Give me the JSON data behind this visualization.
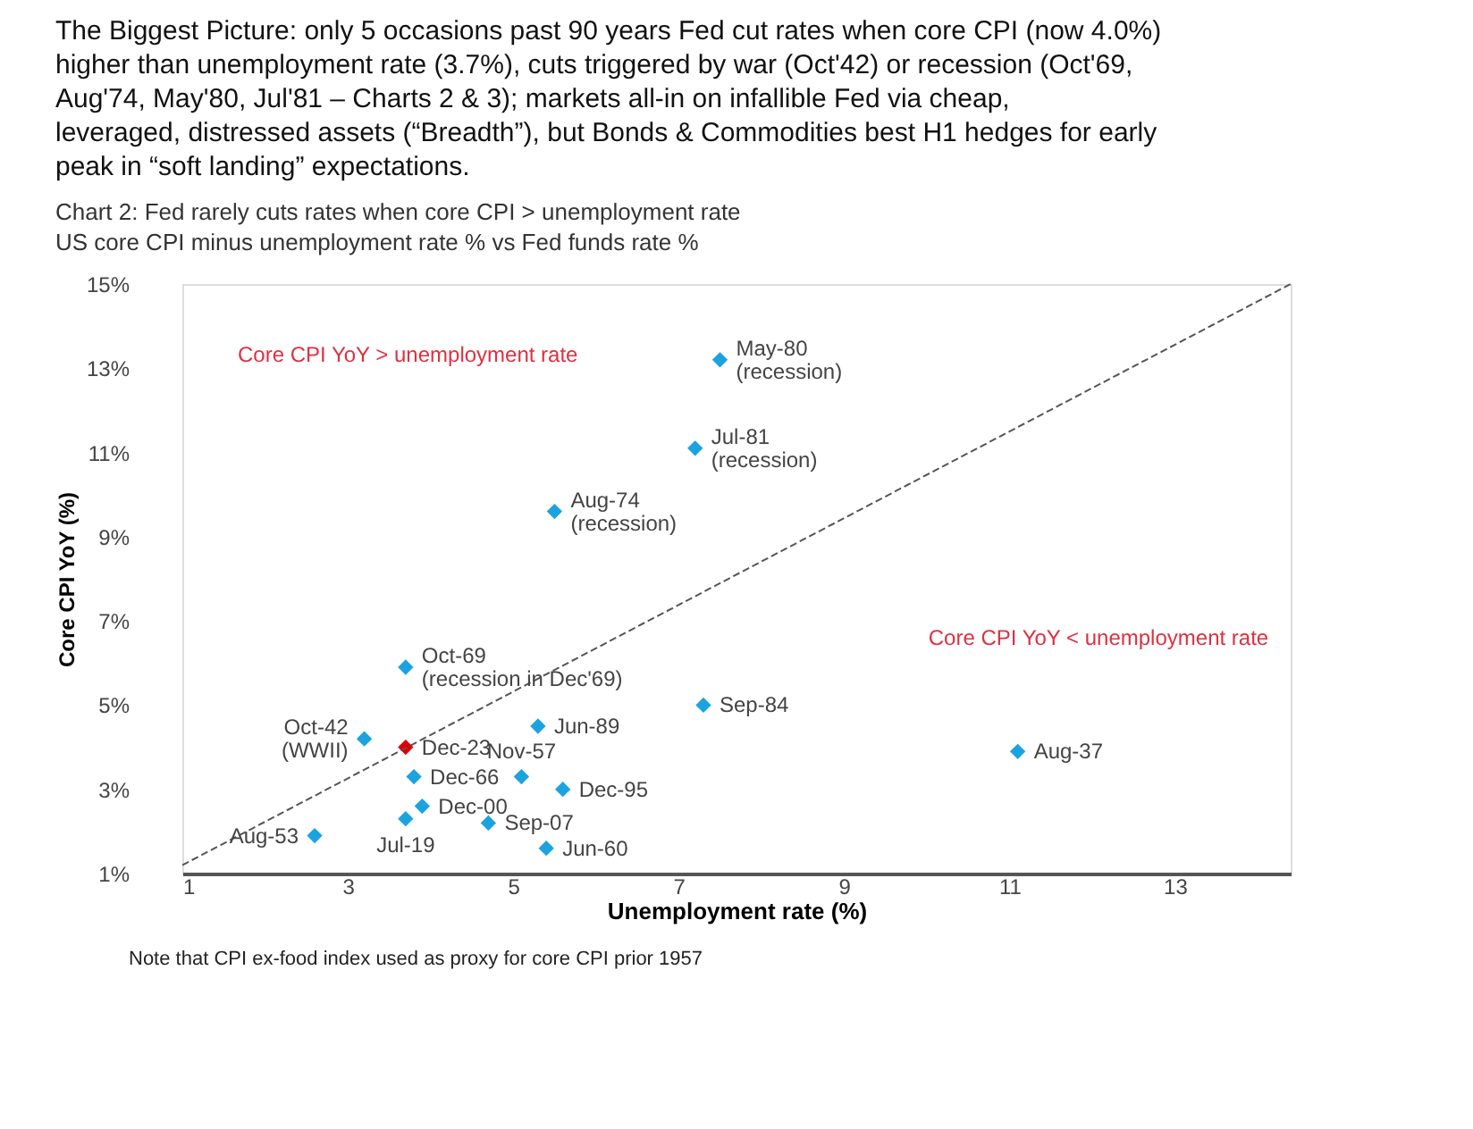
{
  "chart_data": {
    "type": "scatter",
    "title": "The Biggest Picture: only 5 occasions past 90 years Fed cut rates when core CPI (now 4.0%) higher than unemployment rate (3.7%), cuts triggered by war (Oct'42) or recession (Oct'69, Aug'74, May'80, Jul'81 – Charts 2 & 3); markets all-in on infallible Fed via cheap, leveraged, distressed assets (“Breadth”), but Bonds & Commodities best H1 hedges for early peak in “soft landing” expectations.",
    "subtitle": "Chart 2: Fed rarely cuts rates when core CPI > unemployment rate",
    "xlabel": "Unemployment rate (%)",
    "ylabel": "Core CPI YoY (%)",
    "series": [
      {
        "color": "#1ba3e0",
        "marker": "diamond",
        "x": [
          7.5,
          7.2,
          5.5,
          3.7,
          7.3,
          11.1,
          5.3,
          3.2,
          3.8,
          5.1,
          5.6,
          3.9,
          3.7,
          4.7,
          2.6,
          5.4
        ],
        "values": [
          13.2,
          11.1,
          9.6,
          5.9,
          5.0,
          3.9,
          4.5,
          4.2,
          3.3,
          3.3,
          3.0,
          2.6,
          2.3,
          2.2,
          1.9,
          1.6
        ]
      },
      {
        "color": "#e00000",
        "marker": "diamond",
        "x": [
          3.7
        ],
        "values": [
          4.0
        ]
      },
      {
        "type": "line",
        "color": "#555555",
        "line_style": "dashed",
        "x": [
          1,
          14.4
        ],
        "values": [
          1.2,
          15
        ]
      }
    ],
    "annotations": [
      "US core CPI minus unemployment rate % vs Fed funds rate %",
      "Note that CPI ex-food index used as proxy for core CPI prior 1957",
      "Core CPI YoY > unemployment rate",
      "Core CPI YoY < unemployment rate",
      {
        "text": "May-80\n(recession)",
        "x": 7.5,
        "y": 13.2
      },
      {
        "text": "Jul-81\n(recession)",
        "x": 7.2,
        "y": 11.1
      },
      {
        "text": "Aug-74\n(recession)",
        "x": 5.5,
        "y": 9.6
      },
      {
        "text": "Oct-69\n(recession in Dec'69)",
        "x": 3.7,
        "y": 5.9
      },
      {
        "text": "Sep-84",
        "x": 7.3,
        "y": 5.0
      },
      {
        "text": "Aug-37",
        "x": 11.1,
        "y": 3.9
      },
      {
        "text": "Jun-89",
        "x": 5.3,
        "y": 4.5
      },
      {
        "text": "Oct-42\n(WWII)",
        "x": 3.2,
        "y": 4.2
      },
      {
        "text": "Dec-23",
        "x": 3.7,
        "y": 4.0
      },
      {
        "text": "Dec-66",
        "x": 3.8,
        "y": 3.3
      },
      {
        "text": "Nov-57",
        "x": 5.1,
        "y": 3.3
      },
      {
        "text": "Dec-95",
        "x": 5.6,
        "y": 3.0
      },
      {
        "text": "Dec-00",
        "x": 3.9,
        "y": 2.6
      },
      {
        "text": "Jul-19",
        "x": 3.7,
        "y": 2.3
      },
      {
        "text": "Sep-07",
        "x": 4.7,
        "y": 2.2
      },
      {
        "text": "Aug-53",
        "x": 2.6,
        "y": 1.9
      },
      {
        "text": "Jun-60",
        "x": 5.4,
        "y": 1.6
      }
    ],
    "xlim": [
      1,
      14.4
    ],
    "ylim": [
      1,
      15
    ],
    "xticks": [
      1,
      3,
      5,
      7,
      9,
      11,
      13
    ],
    "yticks": [
      {
        "value": 1,
        "label": "1%"
      },
      {
        "value": 3,
        "label": "3%"
      },
      {
        "value": 5,
        "label": "5%"
      },
      {
        "value": 7,
        "label": "7%"
      },
      {
        "value": 9,
        "label": "9%"
      },
      {
        "value": 11,
        "label": "11%"
      },
      {
        "value": 13,
        "label": "13%"
      },
      {
        "value": 15,
        "label": "15%"
      }
    ],
    "grid": false
  }
}
